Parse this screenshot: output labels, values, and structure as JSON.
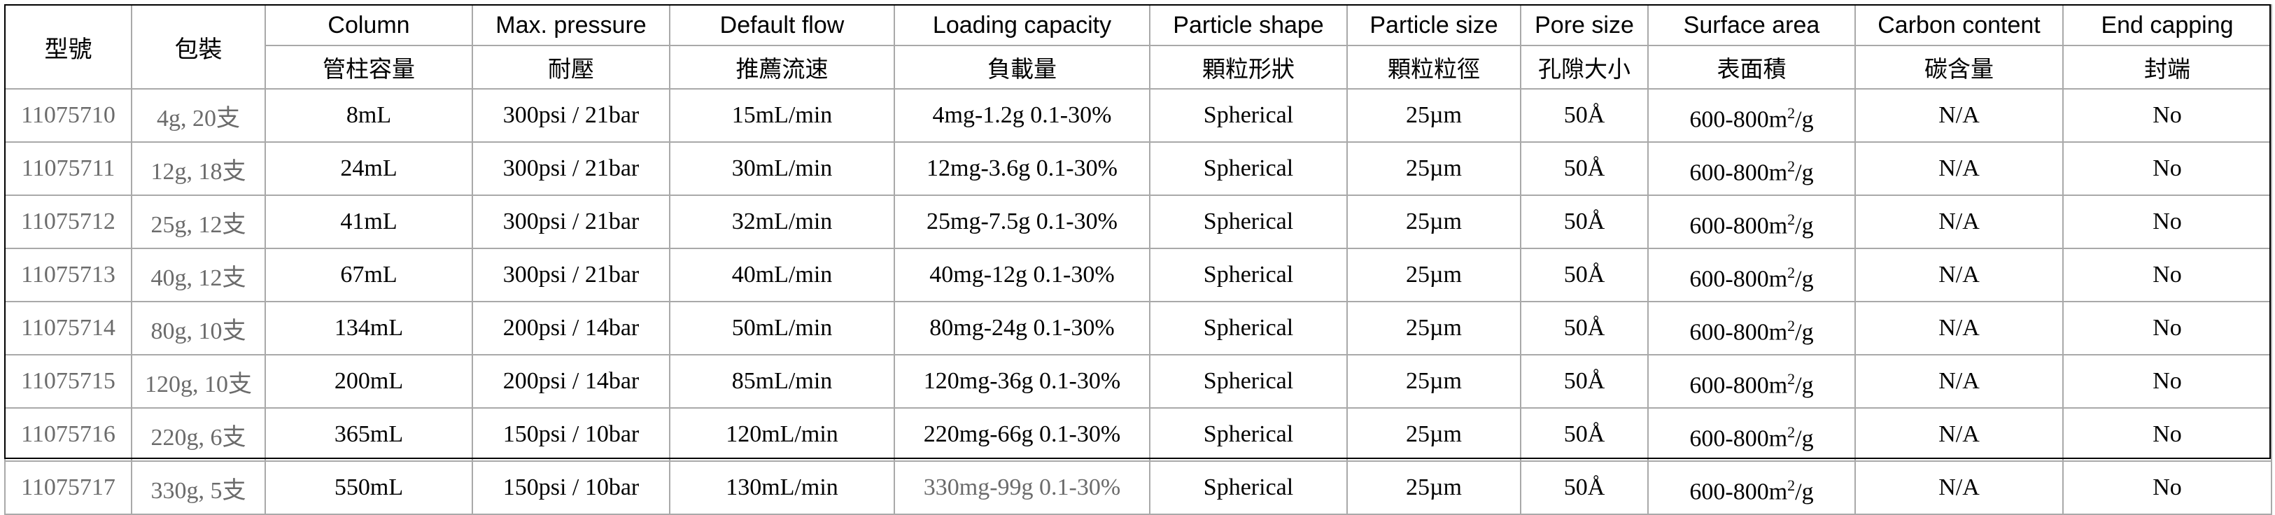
{
  "table": {
    "header_row1": [
      "型號",
      "包裝",
      "Column",
      "Max. pressure",
      "Default flow",
      "Loading capacity",
      "Particle shape",
      "Particle size",
      "Pore size",
      "Surface area",
      "Carbon content",
      "End capping"
    ],
    "header_row2": [
      "管柱容量",
      "耐壓",
      "推薦流速",
      "負載量",
      "顆粒形狀",
      "顆粒粒徑",
      "孔隙大小",
      "表面積",
      "碳含量",
      "封端"
    ],
    "rows": [
      {
        "model": "11075710",
        "package": "4g, 20支",
        "column": "8mL",
        "pressure": "300psi / 21bar",
        "flow": "15mL/min",
        "loading": "4mg-1.2g 0.1-30%",
        "shape": "Spherical",
        "size": "25µm",
        "pore": "50Å",
        "surface_base": "600-800m",
        "surface_sup": "2",
        "surface_tail": "/g",
        "carbon": "N/A",
        "capping": "No"
      },
      {
        "model": "11075711",
        "package": "12g, 18支",
        "column": "24mL",
        "pressure": "300psi / 21bar",
        "flow": "30mL/min",
        "loading": "12mg-3.6g 0.1-30%",
        "shape": "Spherical",
        "size": "25µm",
        "pore": "50Å",
        "surface_base": "600-800m",
        "surface_sup": "2",
        "surface_tail": "/g",
        "carbon": "N/A",
        "capping": "No"
      },
      {
        "model": "11075712",
        "package": "25g, 12支",
        "column": "41mL",
        "pressure": "300psi / 21bar",
        "flow": "32mL/min",
        "loading": "25mg-7.5g 0.1-30%",
        "shape": "Spherical",
        "size": "25µm",
        "pore": "50Å",
        "surface_base": "600-800m",
        "surface_sup": "2",
        "surface_tail": "/g",
        "carbon": "N/A",
        "capping": "No"
      },
      {
        "model": "11075713",
        "package": "40g, 12支",
        "column": "67mL",
        "pressure": "300psi / 21bar",
        "flow": "40mL/min",
        "loading": "40mg-12g 0.1-30%",
        "shape": "Spherical",
        "size": "25µm",
        "pore": "50Å",
        "surface_base": "600-800m",
        "surface_sup": "2",
        "surface_tail": "/g",
        "carbon": "N/A",
        "capping": "No"
      },
      {
        "model": "11075714",
        "package": "80g, 10支",
        "column": "134mL",
        "pressure": "200psi / 14bar",
        "flow": "50mL/min",
        "loading": "80mg-24g 0.1-30%",
        "shape": "Spherical",
        "size": "25µm",
        "pore": "50Å",
        "surface_base": "600-800m",
        "surface_sup": "2",
        "surface_tail": "/g",
        "carbon": "N/A",
        "capping": "No"
      },
      {
        "model": "11075715",
        "package": "120g, 10支",
        "column": "200mL",
        "pressure": "200psi / 14bar",
        "flow": "85mL/min",
        "loading": "120mg-36g 0.1-30%",
        "shape": "Spherical",
        "size": "25µm",
        "pore": "50Å",
        "surface_base": "600-800m",
        "surface_sup": "2",
        "surface_tail": "/g",
        "carbon": "N/A",
        "capping": "No"
      },
      {
        "model": "11075716",
        "package": "220g, 6支",
        "column": "365mL",
        "pressure": "150psi / 10bar",
        "flow": "120mL/min",
        "loading": "220mg-66g 0.1-30%",
        "shape": "Spherical",
        "size": "25µm",
        "pore": "50Å",
        "surface_base": "600-800m",
        "surface_sup": "2",
        "surface_tail": "/g",
        "carbon": "N/A",
        "capping": "No"
      },
      {
        "model": "11075717",
        "package": "330g, 5支",
        "column": "550mL",
        "pressure": "150psi / 10bar",
        "flow": "130mL/min",
        "loading": "330mg-99g 0.1-30%",
        "shape": "Spherical",
        "size": "25µm",
        "pore": "50Å",
        "surface_base": "600-800m",
        "surface_sup": "2",
        "surface_tail": "/g",
        "carbon": "N/A",
        "capping": "No"
      }
    ],
    "colors": {
      "border": "#a9a9a9",
      "muted_text": "#6b6b6b",
      "text": "#000000"
    }
  }
}
